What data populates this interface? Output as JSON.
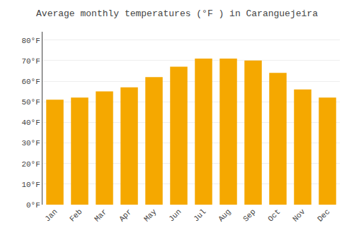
{
  "chart_data": {
    "type": "bar",
    "title": "Average monthly temperatures (°F ) in Caranguejeira",
    "categories": [
      "Jan",
      "Feb",
      "Mar",
      "Apr",
      "May",
      "Jun",
      "Jul",
      "Aug",
      "Sep",
      "Oct",
      "Nov",
      "Dec"
    ],
    "values": [
      51,
      52,
      55,
      57,
      62,
      67,
      71,
      71,
      70,
      64,
      56,
      52
    ],
    "color": "#F5A800",
    "ylim": [
      0,
      84
    ],
    "yticks": [
      {
        "value": 0,
        "label": "0°F"
      },
      {
        "value": 10,
        "label": "10°F"
      },
      {
        "value": 20,
        "label": "20°F"
      },
      {
        "value": 30,
        "label": "30°F"
      },
      {
        "value": 40,
        "label": "40°F"
      },
      {
        "value": 50,
        "label": "50°F"
      },
      {
        "value": 60,
        "label": "60°F"
      },
      {
        "value": 70,
        "label": "70°F"
      },
      {
        "value": 80,
        "label": "80°F"
      }
    ],
    "grid": true
  }
}
